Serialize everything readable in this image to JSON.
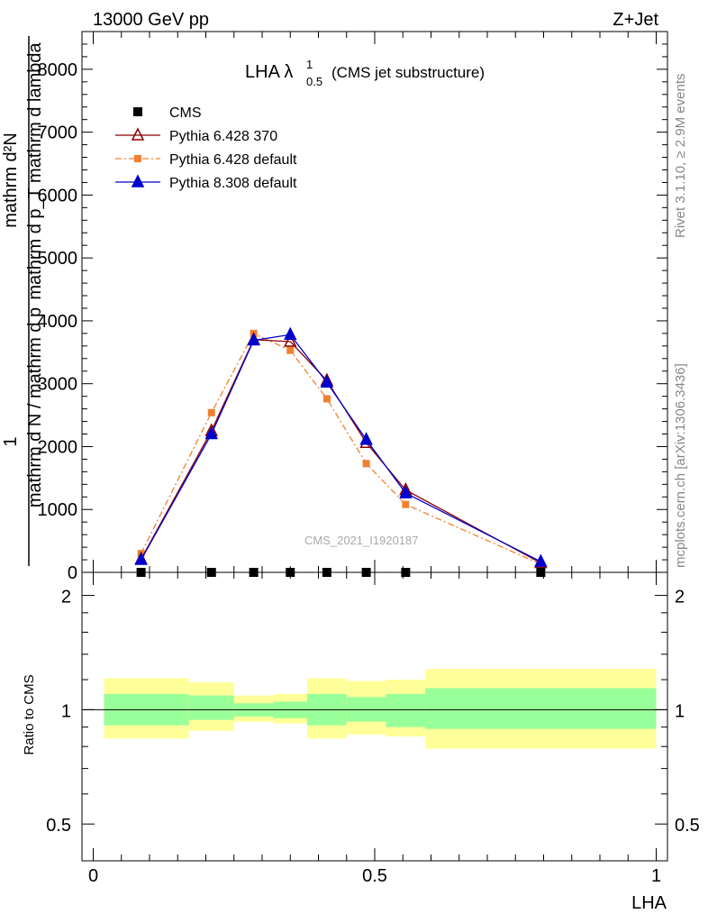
{
  "header": {
    "left": "13000 GeV pp",
    "right": "Z+Jet"
  },
  "side_labels": {
    "rivet": "Rivet 3.1.10, ≥ 2.9M events",
    "mcplots": "mcplots.cern.ch [arXiv:1306.3436]"
  },
  "chart_data": [
    {
      "type": "line",
      "title_main": "LHA λ",
      "title_sup": "1",
      "title_sub": "0.5",
      "title_tail": "(CMS jet substructure)",
      "watermark": "CMS_2021_I1920187",
      "ylabel_numerator": "1",
      "ylabel_denominator": "mathrm d N / mathrm d p",
      "ylabel_overlay_top": "mathrm d²N",
      "ylabel_overlay_bottom": "mathrm d p_T mathrm d lambda",
      "ylim": [
        0,
        8600
      ],
      "yticks": [
        0,
        1000,
        2000,
        3000,
        4000,
        5000,
        6000,
        7000,
        8000
      ],
      "ytick_labels": [
        "0",
        "1000",
        "2000",
        "3000",
        "4000",
        "5000",
        "6000",
        "7000",
        "8000"
      ],
      "xlim": [
        -0.02,
        1.02
      ],
      "legend_position": "top-left",
      "series": [
        {
          "name": "CMS",
          "color": "#000000",
          "marker": "square",
          "line": "none",
          "x": [
            0.085,
            0.21,
            0.285,
            0.35,
            0.415,
            0.485,
            0.555,
            0.795
          ],
          "y": [
            0,
            0,
            0,
            0,
            0,
            0,
            0,
            0
          ]
        },
        {
          "name": "Pythia 6.428 370",
          "color": "#8b0000",
          "marker": "open-triangle",
          "line": "solid",
          "x": [
            0.085,
            0.21,
            0.285,
            0.35,
            0.415,
            0.485,
            0.555,
            0.795
          ],
          "y": [
            210,
            2250,
            3700,
            3670,
            3050,
            2060,
            1310,
            150
          ]
        },
        {
          "name": "Pythia 6.428 default",
          "color": "#f08030",
          "marker": "filled-square",
          "line": "dash-dot",
          "x": [
            0.085,
            0.21,
            0.285,
            0.35,
            0.415,
            0.485,
            0.555,
            0.795
          ],
          "y": [
            300,
            2540,
            3800,
            3530,
            2760,
            1730,
            1080,
            130
          ]
        },
        {
          "name": "Pythia 8.308 default",
          "color": "#0000cc",
          "marker": "filled-triangle",
          "line": "solid",
          "x": [
            0.085,
            0.21,
            0.285,
            0.35,
            0.415,
            0.485,
            0.555,
            0.795
          ],
          "y": [
            200,
            2200,
            3690,
            3780,
            3020,
            2110,
            1260,
            170
          ]
        }
      ]
    },
    {
      "type": "area",
      "ylabel": "Ratio to CMS",
      "xlabel": "LHA",
      "ylim": [
        0.4,
        2.3
      ],
      "log_y": true,
      "yticks": [
        0.5,
        1,
        2
      ],
      "ytick_labels": [
        "0.5",
        "1",
        "2"
      ],
      "xticks": [
        0,
        0.5,
        1
      ],
      "xtick_labels": [
        "0",
        "0.5",
        "1"
      ],
      "reference_line": 1,
      "bins": [
        0,
        0.17,
        0.25,
        0.32,
        0.38,
        0.45,
        0.52,
        0.59,
        1.0
      ],
      "band_inner_color": "#99ff99",
      "band_outer_color": "#ffff99",
      "band_inner": {
        "lo": [
          0.91,
          0.91,
          0.94,
          0.96,
          0.95,
          0.91,
          0.93,
          0.9,
          0.89
        ],
        "hi": [
          1.1,
          1.1,
          1.09,
          1.04,
          1.05,
          1.1,
          1.08,
          1.1,
          1.14
        ]
      },
      "band_outer": {
        "lo": [
          0.84,
          0.84,
          0.88,
          0.93,
          0.92,
          0.84,
          0.86,
          0.85,
          0.79
        ],
        "hi": [
          1.21,
          1.21,
          1.18,
          1.09,
          1.1,
          1.21,
          1.19,
          1.2,
          1.28
        ]
      }
    }
  ]
}
